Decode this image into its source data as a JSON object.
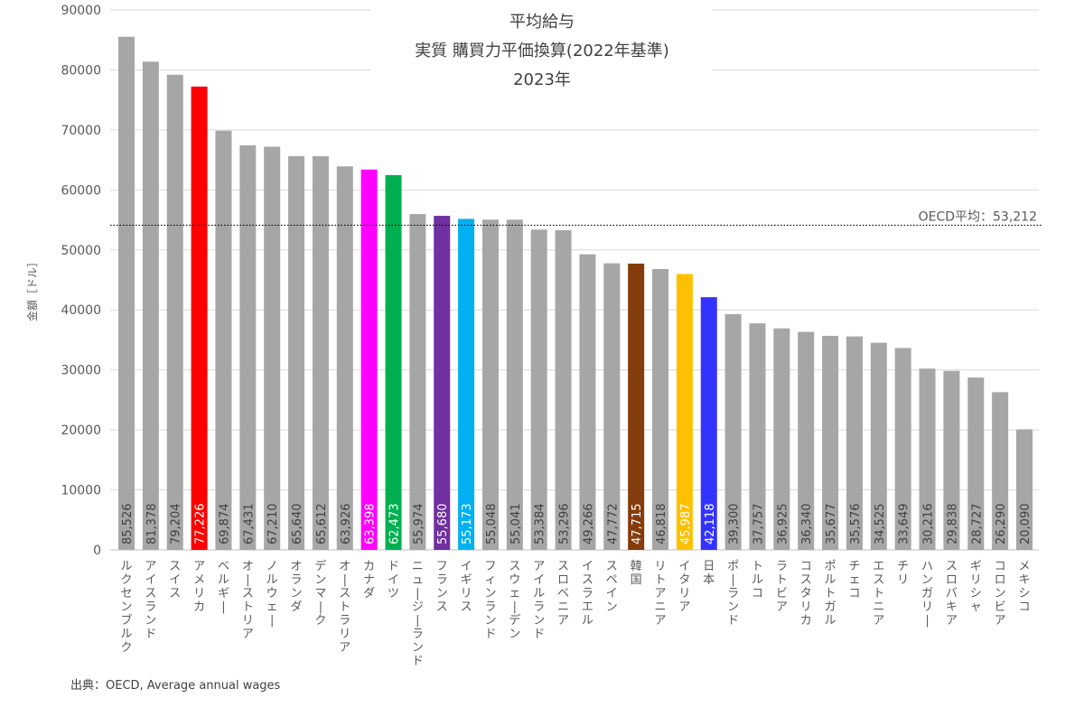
{
  "chart_data": {
    "type": "bar",
    "title": [
      "平均給与",
      "実質 購買力平価換算(2022年基準)",
      "2023年"
    ],
    "ylabel": "金額［ドル］",
    "xlabel": "",
    "ylim": [
      0,
      90000
    ],
    "yticks": [
      0,
      10000,
      20000,
      30000,
      40000,
      50000,
      60000,
      70000,
      80000,
      90000
    ],
    "grid": true,
    "categories": [
      "ルクセンブルク",
      "アイスランド",
      "スイス",
      "アメリカ",
      "ベルギー",
      "オーストリア",
      "ノルウェー",
      "オランダ",
      "デンマーク",
      "オーストラリア",
      "カナダ",
      "ドイツ",
      "ニュージーランド",
      "フランス",
      "イギリス",
      "フィンランド",
      "スウェーデン",
      "アイルランド",
      "スロベニア",
      "イスラエル",
      "スペイン",
      "韓国",
      "リトアニア",
      "イタリア",
      "日本",
      "ポーランド",
      "トルコ",
      "ラトビア",
      "コスタリカ",
      "ポルトガル",
      "チェコ",
      "エストニア",
      "チリ",
      "ハンガリー",
      "スロバキア",
      "ギリシャ",
      "コロンビア",
      "メキシコ"
    ],
    "values": [
      85526,
      81378,
      79204,
      77226,
      69874,
      67431,
      67210,
      65640,
      65612,
      63926,
      63398,
      62473,
      55974,
      55680,
      55173,
      55048,
      55041,
      53384,
      53296,
      49266,
      47772,
      47715,
      46818,
      45987,
      42118,
      39300,
      37757,
      36925,
      36340,
      35677,
      35576,
      34525,
      33649,
      30216,
      29838,
      28727,
      26290,
      20090
    ],
    "value_labels": [
      "85,526",
      "81,378",
      "79,204",
      "77,226",
      "69,874",
      "67,431",
      "67,210",
      "65,640",
      "65,612",
      "63,926",
      "63,398",
      "62,473",
      "55,974",
      "55,680",
      "55,173",
      "55,048",
      "55,041",
      "53,384",
      "53,296",
      "49,266",
      "47,772",
      "47,715",
      "46,818",
      "45,987",
      "42,118",
      "39,300",
      "37,757",
      "36,925",
      "36,340",
      "35,677",
      "35,576",
      "34,525",
      "33,649",
      "30,216",
      "29,838",
      "28,727",
      "26,290",
      "20,090"
    ],
    "default_color": "#a6a6a6",
    "highlight_colors": {
      "アメリカ": "#ff0000",
      "カナダ": "#ff00ff",
      "ドイツ": "#00b050",
      "フランス": "#7030a0",
      "イギリス": "#00b0f0",
      "韓国": "#843c0c",
      "イタリア": "#ffc000",
      "日本": "#3333ff"
    },
    "reference_line": {
      "label": "OECD平均：53,212",
      "value": 53212,
      "style": "dotted"
    },
    "source": "出典：OECD, Average annual wages"
  }
}
